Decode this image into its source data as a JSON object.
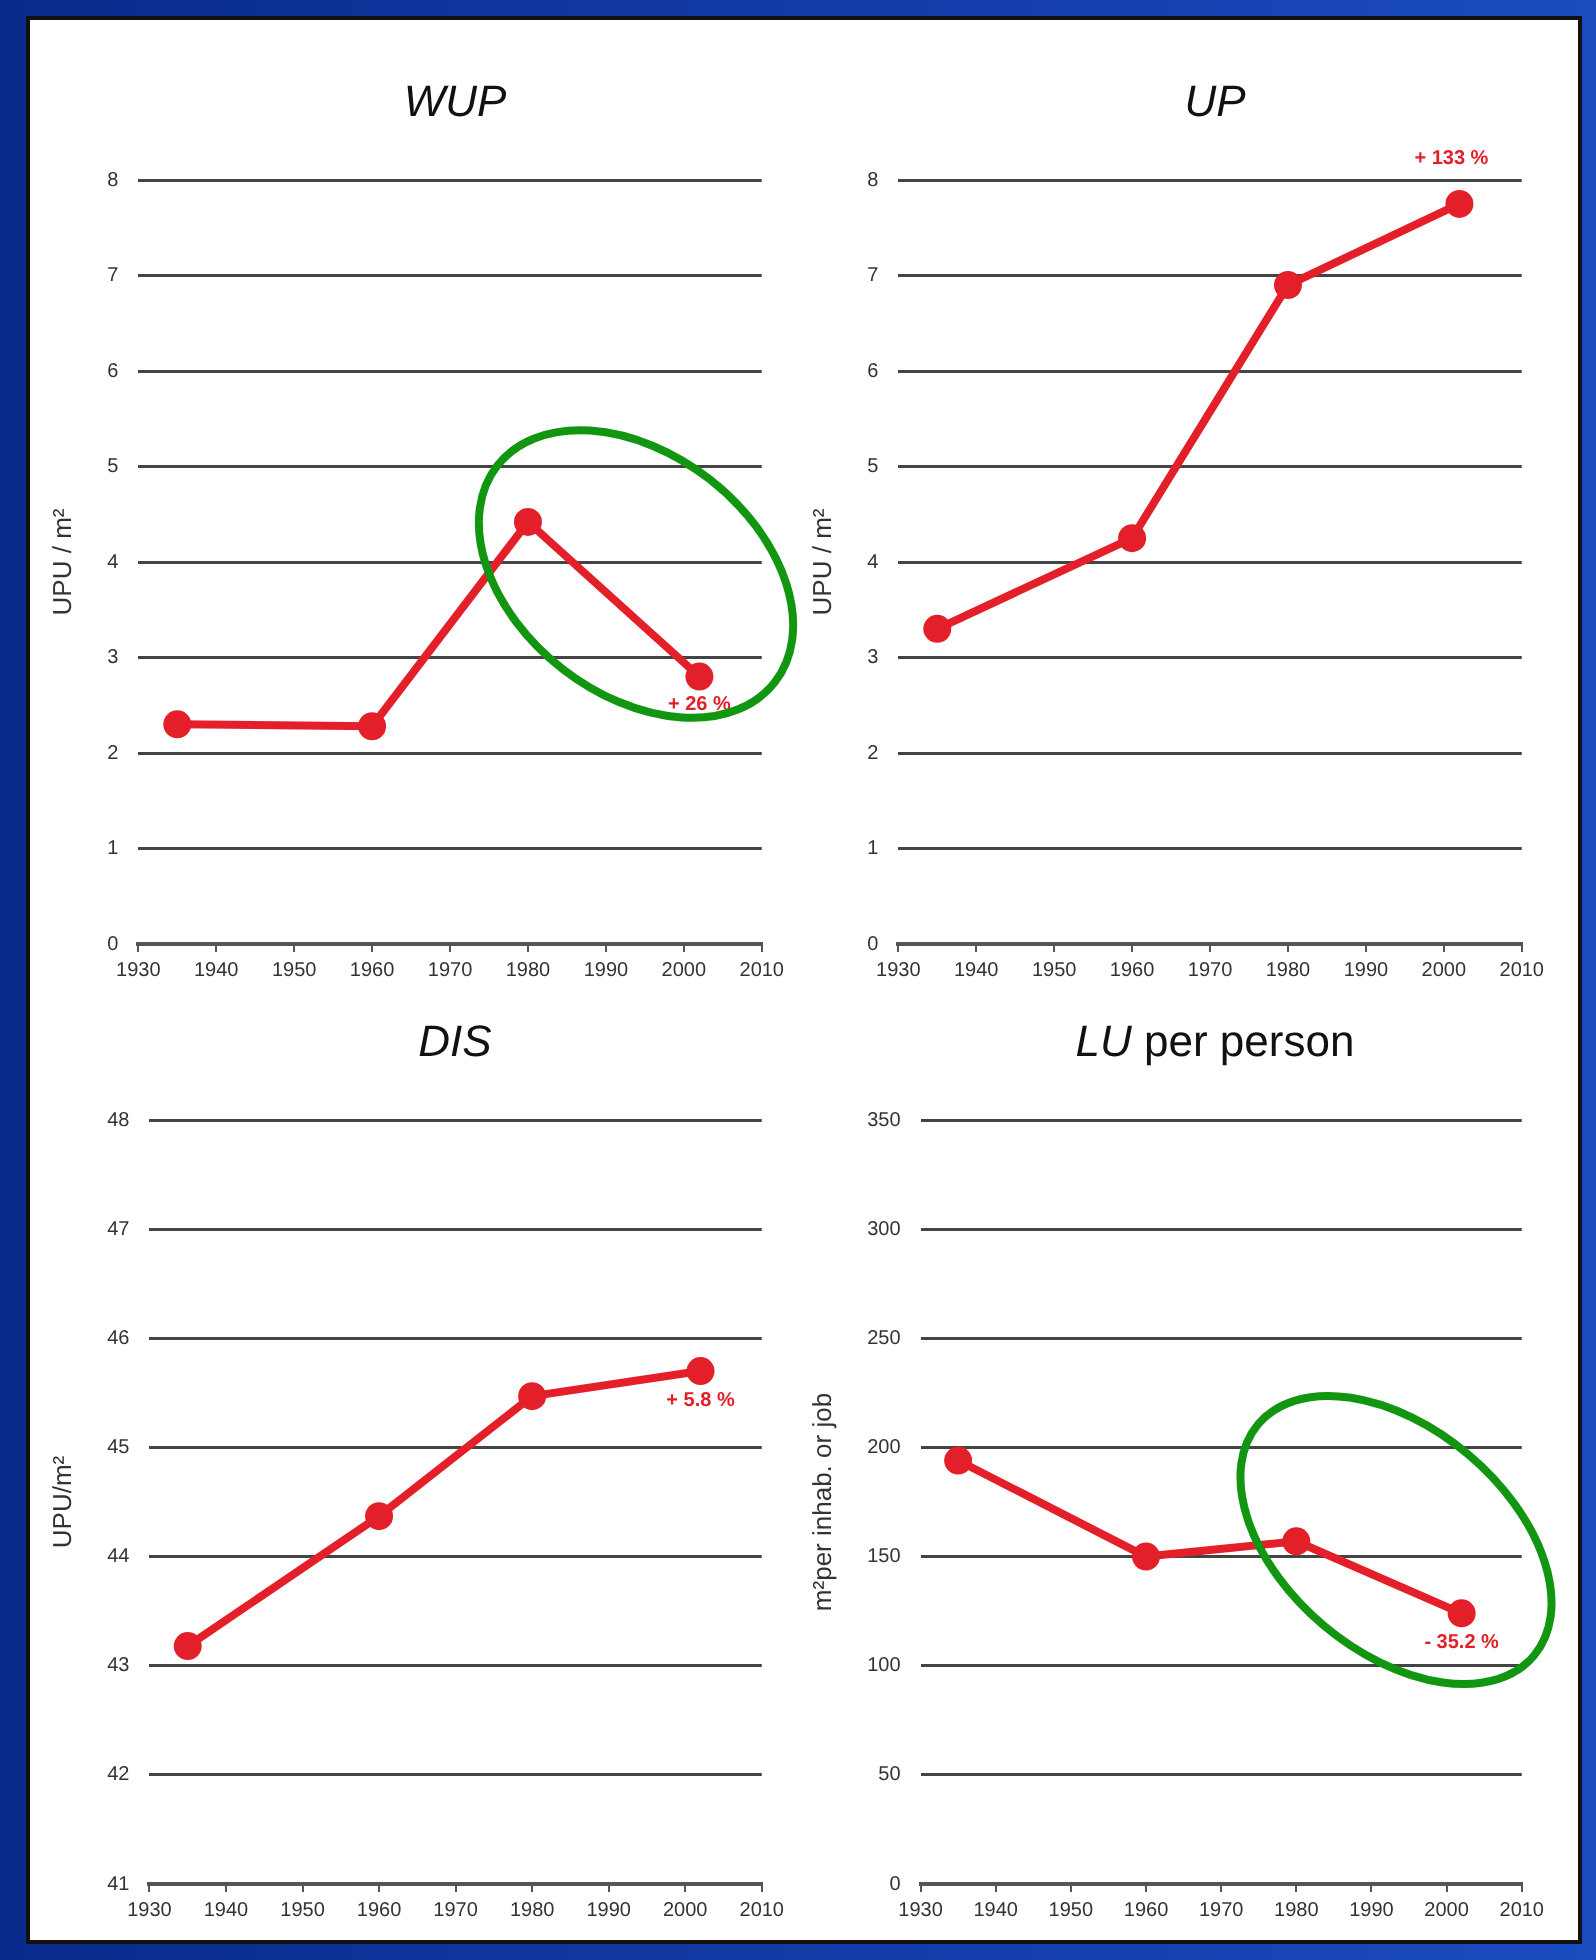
{
  "chart_data": [
    {
      "type": "line",
      "title": "WUP",
      "ylabel": "UPU / m²",
      "x": [
        1935,
        1960,
        1980,
        2002
      ],
      "series": [
        {
          "color": "#e3202a",
          "values": [
            2.3,
            2.28,
            4.42,
            2.8
          ]
        }
      ],
      "xlim": [
        1930,
        2010
      ],
      "xticks": [
        1930,
        1940,
        1950,
        1960,
        1970,
        1980,
        1990,
        2000,
        2010
      ],
      "ylim": [
        0,
        8
      ],
      "yticks": [
        0,
        1,
        2,
        3,
        4,
        5,
        6,
        7,
        8
      ],
      "grid": "y",
      "marker": "circle",
      "line_style": "solid",
      "annotations": [
        "+ 26 %"
      ]
    },
    {
      "type": "line",
      "title": "UP",
      "ylabel": "UPU / m²",
      "x": [
        1935,
        1960,
        1980,
        2002
      ],
      "series": [
        {
          "color": "#e3202a",
          "values": [
            3.3,
            4.25,
            6.9,
            7.75
          ]
        }
      ],
      "xlim": [
        1930,
        2010
      ],
      "xticks": [
        1930,
        1940,
        1950,
        1960,
        1970,
        1980,
        1990,
        2000,
        2010
      ],
      "ylim": [
        0,
        8
      ],
      "yticks": [
        0,
        1,
        2,
        3,
        4,
        5,
        6,
        7,
        8
      ],
      "grid": "y",
      "marker": "circle",
      "line_style": "solid",
      "annotations": [
        "+ 133 %"
      ]
    },
    {
      "type": "line",
      "title": "DIS",
      "ylabel": "UPU/m²",
      "x": [
        1935,
        1960,
        1980,
        2002
      ],
      "series": [
        {
          "color": "#e3202a",
          "values": [
            43.18,
            44.37,
            45.47,
            45.7
          ]
        }
      ],
      "xlim": [
        1930,
        2010
      ],
      "xticks": [
        1930,
        1940,
        1950,
        1960,
        1970,
        1980,
        1990,
        2000,
        2010
      ],
      "ylim": [
        41,
        48
      ],
      "yticks": [
        41,
        42,
        43,
        44,
        45,
        46,
        47,
        48
      ],
      "grid": "y",
      "marker": "circle",
      "line_style": "solid",
      "annotations": [
        "+ 5.8 %"
      ]
    },
    {
      "type": "line",
      "title": "LU per person",
      "ylabel": "m²per inhab. or job",
      "x": [
        1935,
        1960,
        1980,
        2002
      ],
      "series": [
        {
          "color": "#e3202a",
          "values": [
            194,
            150,
            157,
            124
          ]
        }
      ],
      "xlim": [
        1930,
        2010
      ],
      "xticks": [
        1930,
        1940,
        1950,
        1960,
        1970,
        1980,
        1990,
        2000,
        2010
      ],
      "ylim": [
        0,
        350
      ],
      "yticks": [
        0,
        50,
        100,
        150,
        200,
        250,
        300,
        350
      ],
      "grid": "y",
      "marker": "circle",
      "line_style": "solid",
      "annotations": [
        "- 35.2 %"
      ]
    }
  ]
}
